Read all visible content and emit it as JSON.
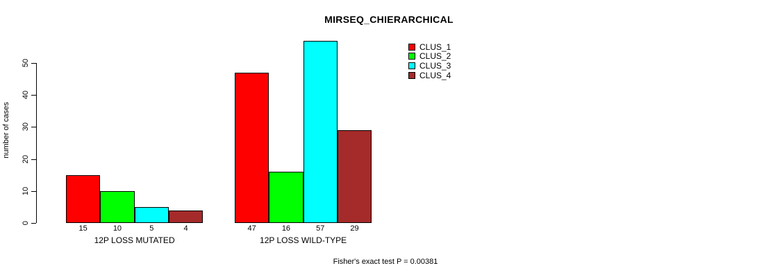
{
  "chart_data": {
    "type": "bar",
    "title": "MIRSEQ_CHIERARCHICAL",
    "ylabel": "number of cases",
    "xlabel": "",
    "ylim": [
      0,
      57
    ],
    "yticks": [
      0,
      10,
      20,
      30,
      40,
      50
    ],
    "grid": false,
    "legend_position": "top-right",
    "categories": [
      "12P LOSS MUTATED",
      "12P LOSS WILD-TYPE"
    ],
    "series": [
      {
        "name": "CLUS_1",
        "color": "#FF0000",
        "values": [
          15,
          47
        ]
      },
      {
        "name": "CLUS_2",
        "color": "#00FF00",
        "values": [
          10,
          16
        ]
      },
      {
        "name": "CLUS_3",
        "color": "#00FFFF",
        "values": [
          5,
          57
        ]
      },
      {
        "name": "CLUS_4",
        "color": "#A52A2A",
        "values": [
          4,
          29
        ]
      }
    ],
    "annotation": "Fisher's exact test P = 0.00381",
    "text_color": "#000000",
    "background_color": "#FFFFFF"
  }
}
